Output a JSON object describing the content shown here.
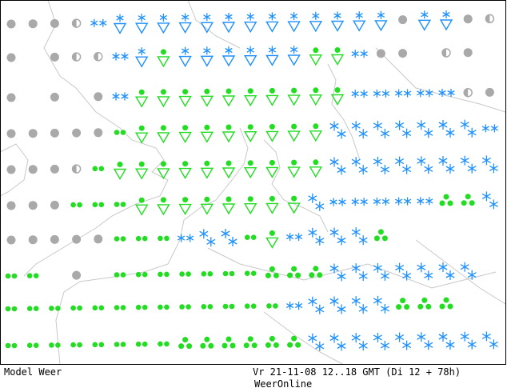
{
  "footer": {
    "model": "Model Weer",
    "valid": "Vr 21-11-08 12..18 GMT (Di 12 + 78h)",
    "brand": "WeerOnline"
  }
}
